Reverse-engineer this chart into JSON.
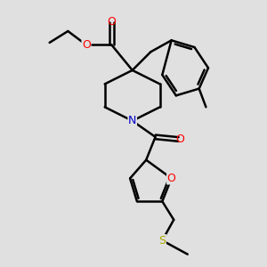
{
  "bg_color": "#e0e0e0",
  "bond_color": "#000000",
  "bond_width": 1.8,
  "atom_colors": {
    "O": "#ff0000",
    "N": "#0000cc",
    "S": "#aaaa00",
    "C": "#000000"
  },
  "font_size": 9,
  "fig_width": 3.0,
  "fig_height": 3.0,
  "dpi": 100
}
